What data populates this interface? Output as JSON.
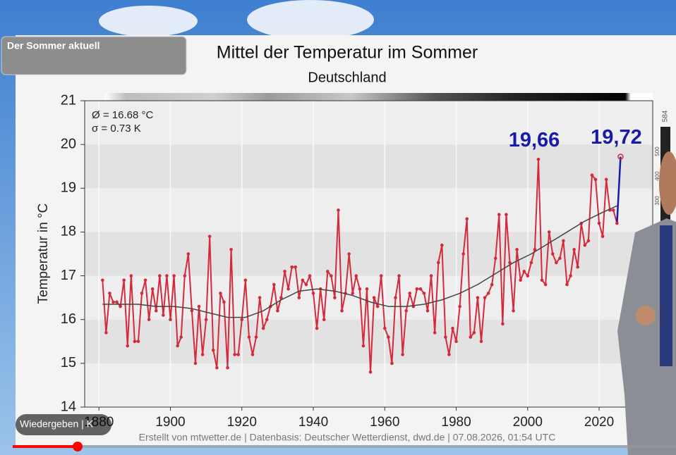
{
  "overlay": {
    "label": "Der Sommer aktuell"
  },
  "player": {
    "status": "Wiedergeben | K"
  },
  "chart_data": {
    "type": "line",
    "title": "Mittel der Temperatur im Sommer",
    "subtitle": "Deutschland",
    "y_label": "Temperatur in °C",
    "stats": [
      "Ø = 16.68 °C",
      "σ = 0.73 K"
    ],
    "source": "Erstellt von mtwetter.de | Datenbasis: Deutscher Wetterdienst, dwd.de | 07.08.2026, 01:54 UTC",
    "side_scale": [
      "584",
      "500",
      "400",
      "300"
    ],
    "xlim": [
      1876,
      2035
    ],
    "xticks": [
      1880,
      1900,
      1920,
      1940,
      1960,
      1980,
      2000,
      2020
    ],
    "ylim": [
      14,
      21
    ],
    "yticks": [
      14,
      15,
      16,
      17,
      18,
      19,
      20,
      21
    ],
    "grid": true,
    "series": [
      {
        "color": "#d42a3c",
        "highlight_color": "#1a1aa8",
        "markers": true,
        "x": [
          1881,
          1882,
          1883,
          1884,
          1885,
          1886,
          1887,
          1888,
          1889,
          1890,
          1891,
          1892,
          1893,
          1894,
          1895,
          1896,
          1897,
          1898,
          1899,
          1900,
          1901,
          1902,
          1903,
          1904,
          1905,
          1906,
          1907,
          1908,
          1909,
          1910,
          1911,
          1912,
          1913,
          1914,
          1915,
          1916,
          1917,
          1918,
          1919,
          1920,
          1921,
          1922,
          1923,
          1924,
          1925,
          1926,
          1927,
          1928,
          1929,
          1930,
          1931,
          1932,
          1933,
          1934,
          1935,
          1936,
          1937,
          1938,
          1939,
          1940,
          1941,
          1942,
          1943,
          1944,
          1945,
          1946,
          1947,
          1948,
          1949,
          1950,
          1951,
          1952,
          1953,
          1954,
          1955,
          1956,
          1957,
          1958,
          1959,
          1960,
          1961,
          1962,
          1963,
          1964,
          1965,
          1966,
          1967,
          1968,
          1969,
          1970,
          1971,
          1972,
          1973,
          1974,
          1975,
          1976,
          1977,
          1978,
          1979,
          1980,
          1981,
          1982,
          1983,
          1984,
          1985,
          1986,
          1987,
          1988,
          1989,
          1990,
          1991,
          1992,
          1993,
          1994,
          1995,
          1996,
          1997,
          1998,
          1999,
          2000,
          2001,
          2002,
          2003,
          2004,
          2005,
          2006,
          2007,
          2008,
          2009,
          2010,
          2011,
          2012,
          2013,
          2014,
          2015,
          2016,
          2017,
          2018,
          2019,
          2020,
          2021,
          2022,
          2023,
          2024,
          2025,
          2026
        ],
        "values": [
          16.9,
          15.7,
          16.6,
          16.4,
          16.4,
          16.3,
          16.9,
          15.4,
          17.0,
          15.5,
          15.5,
          16.6,
          16.9,
          16.0,
          16.7,
          16.2,
          17.0,
          16.1,
          17.0,
          16.0,
          17.0,
          15.4,
          15.6,
          17.0,
          17.5,
          16.2,
          15.0,
          16.3,
          15.2,
          16.0,
          17.9,
          15.3,
          14.9,
          16.6,
          16.4,
          14.9,
          17.6,
          15.2,
          15.2,
          16.0,
          16.9,
          15.6,
          15.2,
          15.6,
          16.5,
          15.8,
          16.0,
          16.3,
          16.8,
          16.2,
          16.5,
          17.1,
          16.7,
          17.2,
          17.2,
          16.5,
          16.9,
          16.8,
          17.0,
          16.6,
          15.8,
          16.7,
          16.0,
          17.1,
          17.0,
          16.5,
          18.5,
          16.2,
          16.6,
          17.5,
          16.6,
          17.0,
          16.7,
          15.4,
          16.7,
          14.8,
          16.5,
          16.3,
          17.0,
          15.8,
          15.6,
          15.0,
          16.5,
          17.0,
          15.2,
          16.2,
          16.6,
          16.3,
          16.7,
          16.7,
          16.6,
          16.2,
          17.0,
          15.7,
          17.3,
          17.7,
          15.6,
          15.2,
          15.8,
          15.5,
          16.3,
          17.5,
          18.3,
          15.6,
          15.7,
          16.5,
          15.5,
          16.5,
          16.6,
          16.8,
          17.4,
          18.4,
          15.9,
          18.4,
          17.3,
          16.2,
          17.6,
          16.9,
          17.1,
          17.0,
          17.3,
          17.6,
          19.66,
          16.9,
          16.8,
          18.0,
          17.5,
          17.3,
          17.4,
          17.8,
          16.8,
          17.0,
          17.6,
          17.2,
          18.2,
          17.7,
          17.8,
          19.3,
          19.2,
          18.2,
          17.9,
          19.2,
          18.5,
          18.5,
          18.2,
          19.72
        ]
      },
      {
        "color": "#444444",
        "markers": false,
        "x": [
          1881,
          1886,
          1891,
          1896,
          1901,
          1906,
          1911,
          1916,
          1921,
          1926,
          1931,
          1936,
          1941,
          1946,
          1951,
          1956,
          1961,
          1966,
          1971,
          1976,
          1981,
          1986,
          1991,
          1996,
          2001,
          2006,
          2011,
          2016,
          2021,
          2025
        ],
        "values": [
          16.35,
          16.35,
          16.35,
          16.3,
          16.3,
          16.25,
          16.15,
          16.05,
          16.05,
          16.2,
          16.45,
          16.65,
          16.7,
          16.65,
          16.55,
          16.4,
          16.3,
          16.3,
          16.35,
          16.45,
          16.6,
          16.8,
          17.05,
          17.3,
          17.5,
          17.75,
          18.0,
          18.25,
          18.45,
          18.6
        ]
      }
    ],
    "annotations": [
      {
        "text": "19,66",
        "x": 2003,
        "y": 19.66,
        "color": "#1a1aa8"
      },
      {
        "text": "19,72",
        "x": 2026,
        "y": 19.72,
        "color": "#1a1aa8"
      }
    ]
  }
}
